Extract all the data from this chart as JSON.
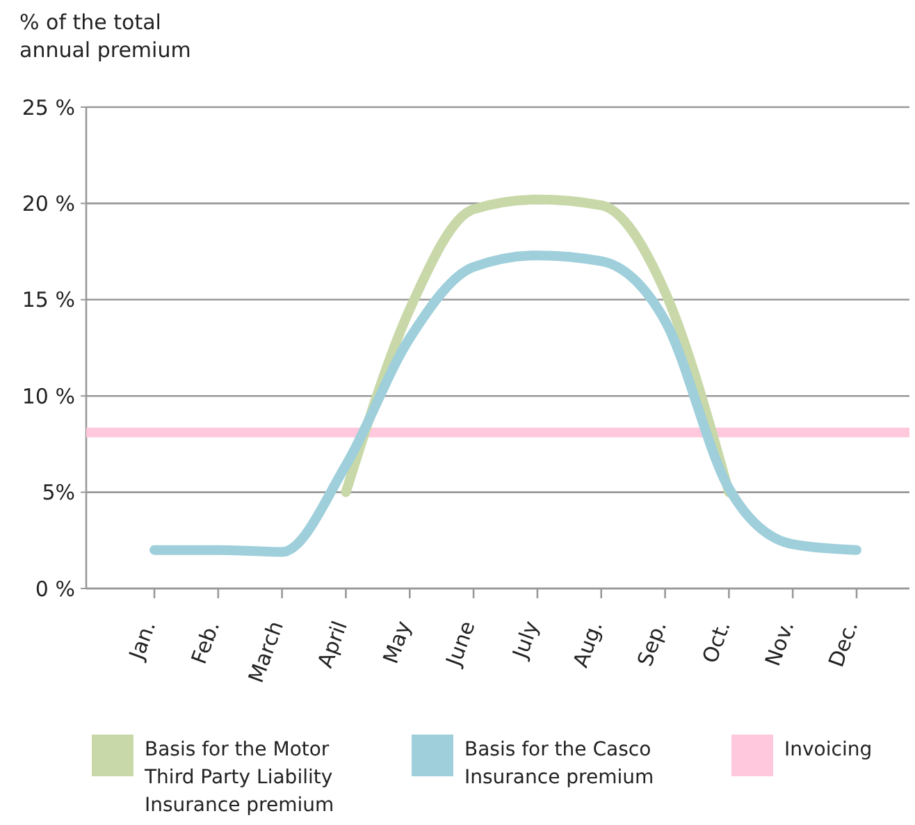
{
  "chart_data": {
    "type": "line",
    "ylabel": "% of the total annual premium",
    "categories": [
      "Jan.",
      "Feb.",
      "March",
      "April",
      "May",
      "June",
      "July",
      "Aug.",
      "Sep.",
      "Oct.",
      "Nov.",
      "Dec."
    ],
    "series": [
      {
        "name": "Basis for the Motor Third Party Liability Insurance premium",
        "color": "#c8d8a8",
        "values": [
          null,
          null,
          null,
          5.0,
          14.5,
          19.7,
          20.2,
          19.9,
          15.4,
          5.0,
          null,
          null
        ]
      },
      {
        "name": "Basis for the Casco Insurance premium",
        "color": "#9ecfdb",
        "values": [
          2.0,
          2.0,
          1.9,
          6.4,
          13.0,
          16.7,
          17.3,
          17.0,
          13.9,
          5.2,
          2.3,
          2.0
        ]
      }
    ],
    "ref_lines": [
      {
        "axis": "y",
        "value": 8.1,
        "label": "Invoicing",
        "color": "#ffc8dc"
      }
    ],
    "ylim": [
      0,
      25
    ],
    "yticks": [
      {
        "value": 0,
        "label": "0 %"
      },
      {
        "value": 5,
        "label": "5%"
      },
      {
        "value": 10,
        "label": "10 %"
      },
      {
        "value": 15,
        "label": "15 %"
      },
      {
        "value": 20,
        "label": "20 %"
      },
      {
        "value": 25,
        "label": "25 %"
      }
    ],
    "grid": "y",
    "legend": "bottom",
    "marker": "none",
    "line_style": "solid"
  }
}
